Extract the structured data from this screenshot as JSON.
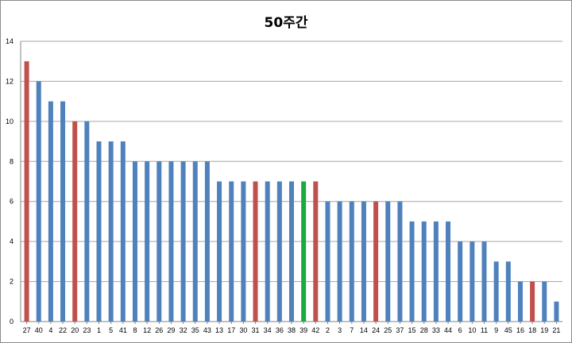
{
  "chart_data": {
    "type": "bar",
    "title": "50주간",
    "xlabel": "",
    "ylabel": "",
    "ylim": [
      0,
      14
    ],
    "yticks": [
      0,
      2,
      4,
      6,
      8,
      10,
      12,
      14
    ],
    "grid": true,
    "legend": "none",
    "colors": {
      "default": "#4f81bd",
      "red": "#c0504d",
      "green": "#1aab40"
    },
    "categories": [
      "27",
      "40",
      "4",
      "22",
      "20",
      "23",
      "1",
      "5",
      "41",
      "8",
      "12",
      "26",
      "29",
      "32",
      "35",
      "43",
      "13",
      "17",
      "30",
      "31",
      "34",
      "36",
      "38",
      "39",
      "42",
      "2",
      "3",
      "7",
      "14",
      "24",
      "25",
      "37",
      "15",
      "28",
      "33",
      "44",
      "6",
      "10",
      "11",
      "9",
      "45",
      "16",
      "18",
      "19",
      "21"
    ],
    "values": [
      13,
      12,
      11,
      11,
      10,
      10,
      9,
      9,
      9,
      8,
      8,
      8,
      8,
      8,
      8,
      8,
      7,
      7,
      7,
      7,
      7,
      7,
      7,
      7,
      7,
      6,
      6,
      6,
      6,
      6,
      6,
      6,
      5,
      5,
      5,
      5,
      4,
      4,
      4,
      3,
      3,
      2,
      2,
      2,
      1
    ],
    "bar_colors": [
      "red",
      "default",
      "default",
      "default",
      "red",
      "default",
      "default",
      "default",
      "default",
      "default",
      "default",
      "default",
      "default",
      "default",
      "default",
      "default",
      "default",
      "default",
      "default",
      "red",
      "default",
      "default",
      "default",
      "green",
      "red",
      "default",
      "default",
      "default",
      "default",
      "red",
      "default",
      "default",
      "default",
      "default",
      "default",
      "default",
      "default",
      "default",
      "default",
      "default",
      "default",
      "default",
      "red",
      "default",
      "default"
    ]
  }
}
